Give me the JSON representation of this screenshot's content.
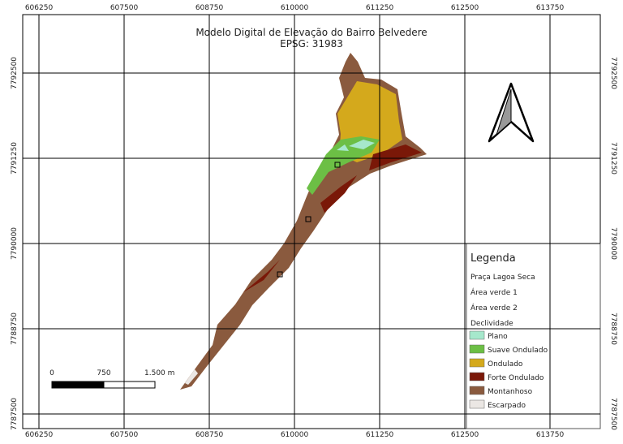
{
  "title": "Modelo Digital de Elevação do Bairro Belvedere",
  "subtitle": "EPSG: 31983",
  "grid": {
    "x_labels": [
      606250,
      607500,
      608750,
      610000,
      611250,
      612500,
      613750
    ],
    "y_labels": [
      7792500,
      7791250,
      7790000,
      7788750,
      7787500
    ]
  },
  "scale_bar": {
    "labels": [
      "0",
      "750",
      "1.500 m"
    ]
  },
  "legend": {
    "title": "Legenda",
    "layers": [
      "Praça Lagoa Seca",
      "Área verde 1",
      "Área verde 2"
    ],
    "group": "Declividade",
    "classes": [
      {
        "label": "Plano",
        "color": "#a6e8cc"
      },
      {
        "label": "Suave Ondulado",
        "color": "#6cbf45"
      },
      {
        "label": "Ondulado",
        "color": "#d4a91c"
      },
      {
        "label": "Forte Ondulado",
        "color": "#7a1808"
      },
      {
        "label": "Montanhoso",
        "color": "#8a5a3e"
      },
      {
        "label": "Escarpado",
        "color": "#ebe7e4"
      }
    ]
  }
}
